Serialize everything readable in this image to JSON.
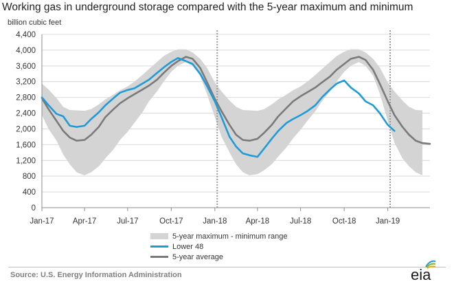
{
  "title": "Working gas in underground  storage compared with the 5-year maximum and minimum",
  "unit_label": "billion cubic feet",
  "source": "Source:  U.S. Energy Information Administration",
  "logo_text": "eia",
  "legend": [
    {
      "key": "range",
      "label": "5-year maximum - minimum range",
      "color": "#d4d4d4"
    },
    {
      "key": "lower48",
      "label": "Lower 48",
      "color": "#1f9bd7"
    },
    {
      "key": "avg",
      "label": "5-year average",
      "color": "#7a7a7a"
    }
  ],
  "chart_data": {
    "type": "area",
    "title": "Working gas in underground  storage compared with the 5-year maximum and minimum",
    "ylabel": "billion cubic feet",
    "xlabel": "",
    "ylim": [
      0,
      4400
    ],
    "yticks": [
      0,
      400,
      800,
      1200,
      1600,
      2000,
      2400,
      2800,
      3200,
      3600,
      4000,
      4400
    ],
    "ytick_labels": [
      "0",
      "400",
      "800",
      "1,200",
      "1,600",
      "2,000",
      "2,400",
      "2,800",
      "3,200",
      "3,600",
      "4,000",
      "4,400"
    ],
    "xlim": [
      "2017-01-01",
      "2019-03-31"
    ],
    "xticks": [
      "2017-01-01",
      "2017-04-01",
      "2017-07-01",
      "2017-10-01",
      "2018-01-01",
      "2018-04-01",
      "2018-07-01",
      "2018-10-01",
      "2019-01-01"
    ],
    "xtick_labels": [
      "Jan-17",
      "Apr-17",
      "Jul-17",
      "Oct-17",
      "Jan-18",
      "Apr-18",
      "Jul-18",
      "Oct-18",
      "Jan-19"
    ],
    "vlines": [
      "2018-01-06",
      "2019-01-06"
    ],
    "grid": "horizontal",
    "legend_position": "bottom-center",
    "colors": {
      "range": "#d4d4d4",
      "lower48": "#1f9bd7",
      "avg": "#7a7a7a",
      "vline": "#9a9a9a"
    },
    "range_band": {
      "name": "5-year maximum - minimum range",
      "x": [
        "2017-01-01",
        "2017-01-15",
        "2017-02-01",
        "2017-02-15",
        "2017-03-01",
        "2017-03-15",
        "2017-04-01",
        "2017-04-15",
        "2017-05-01",
        "2017-05-15",
        "2017-06-01",
        "2017-06-15",
        "2017-07-01",
        "2017-07-15",
        "2017-08-01",
        "2017-08-15",
        "2017-09-01",
        "2017-09-15",
        "2017-10-01",
        "2017-10-15",
        "2017-11-01",
        "2017-11-15",
        "2017-12-01",
        "2017-12-15",
        "2018-01-01",
        "2018-01-15",
        "2018-02-01",
        "2018-02-15",
        "2018-03-01",
        "2018-03-15",
        "2018-04-01",
        "2018-04-15",
        "2018-05-01",
        "2018-05-15",
        "2018-06-01",
        "2018-06-15",
        "2018-07-01",
        "2018-07-15",
        "2018-08-01",
        "2018-08-15",
        "2018-09-01",
        "2018-09-15",
        "2018-10-01",
        "2018-10-15",
        "2018-11-01",
        "2018-11-15",
        "2018-12-01",
        "2018-12-15",
        "2019-01-01",
        "2019-01-15",
        "2019-02-01",
        "2019-02-15",
        "2019-03-01",
        "2019-03-15"
      ],
      "max": [
        3150,
        3000,
        2780,
        2560,
        2480,
        2470,
        2460,
        2500,
        2620,
        2750,
        2870,
        2980,
        3080,
        3200,
        3370,
        3520,
        3700,
        3850,
        3960,
        4020,
        4020,
        3940,
        3780,
        3560,
        3180,
        2950,
        2720,
        2560,
        2480,
        2470,
        2460,
        2500,
        2620,
        2750,
        2870,
        2980,
        3080,
        3200,
        3370,
        3520,
        3700,
        3850,
        3960,
        4020,
        4020,
        3940,
        3780,
        3560,
        3180,
        2950,
        2720,
        2560,
        2480,
        2470
      ],
      "min": [
        2350,
        2000,
        1700,
        1350,
        1100,
        900,
        820,
        900,
        1050,
        1250,
        1480,
        1720,
        1930,
        2150,
        2420,
        2700,
        2950,
        3200,
        3450,
        3600,
        3700,
        3600,
        3350,
        2900,
        2300,
        1800,
        1400,
        1100,
        900,
        820,
        850,
        950,
        1100,
        1300,
        1530,
        1760,
        1980,
        2200,
        2450,
        2700,
        2950,
        3200,
        3450,
        3600,
        3700,
        3600,
        3350,
        2900,
        2200,
        1650,
        1250,
        1050,
        900,
        820
      ]
    },
    "series": [
      {
        "name": "Lower 48",
        "x": [
          "2017-01-01",
          "2017-01-15",
          "2017-02-01",
          "2017-02-15",
          "2017-03-01",
          "2017-03-15",
          "2017-04-01",
          "2017-04-15",
          "2017-05-01",
          "2017-05-15",
          "2017-06-01",
          "2017-06-15",
          "2017-07-01",
          "2017-07-15",
          "2017-08-01",
          "2017-08-15",
          "2017-09-01",
          "2017-09-15",
          "2017-10-01",
          "2017-10-15",
          "2017-11-01",
          "2017-11-15",
          "2017-12-01",
          "2017-12-15",
          "2018-01-01",
          "2018-01-15",
          "2018-02-01",
          "2018-02-15",
          "2018-03-01",
          "2018-03-15",
          "2018-04-01",
          "2018-04-15",
          "2018-05-01",
          "2018-05-15",
          "2018-06-01",
          "2018-06-15",
          "2018-07-01",
          "2018-07-15",
          "2018-08-01",
          "2018-08-15",
          "2018-09-01",
          "2018-09-15",
          "2018-10-01",
          "2018-10-15",
          "2018-11-01",
          "2018-11-15",
          "2018-12-01",
          "2018-12-15",
          "2019-01-01",
          "2019-01-15"
        ],
        "values": [
          2800,
          2600,
          2380,
          2320,
          2080,
          2050,
          2080,
          2250,
          2420,
          2600,
          2780,
          2920,
          2990,
          3030,
          3150,
          3250,
          3420,
          3560,
          3700,
          3800,
          3720,
          3650,
          3400,
          3100,
          2700,
          2300,
          1800,
          1550,
          1380,
          1330,
          1290,
          1500,
          1750,
          1950,
          2150,
          2250,
          2350,
          2450,
          2600,
          2800,
          3000,
          3150,
          3230,
          3050,
          2900,
          2700,
          2600,
          2400,
          2100,
          1950
        ]
      },
      {
        "name": "5-year average",
        "x": [
          "2017-01-01",
          "2017-01-15",
          "2017-02-01",
          "2017-02-15",
          "2017-03-01",
          "2017-03-15",
          "2017-04-01",
          "2017-04-15",
          "2017-05-01",
          "2017-05-15",
          "2017-06-01",
          "2017-06-15",
          "2017-07-01",
          "2017-07-15",
          "2017-08-01",
          "2017-08-15",
          "2017-09-01",
          "2017-09-15",
          "2017-10-01",
          "2017-10-15",
          "2017-11-01",
          "2017-11-15",
          "2017-12-01",
          "2017-12-15",
          "2018-01-01",
          "2018-01-15",
          "2018-02-01",
          "2018-02-15",
          "2018-03-01",
          "2018-03-15",
          "2018-04-01",
          "2018-04-15",
          "2018-05-01",
          "2018-05-15",
          "2018-06-01",
          "2018-06-15",
          "2018-07-01",
          "2018-07-15",
          "2018-08-01",
          "2018-08-15",
          "2018-09-01",
          "2018-09-15",
          "2018-10-01",
          "2018-10-15",
          "2018-11-01",
          "2018-11-15",
          "2018-12-01",
          "2018-12-15",
          "2019-01-01",
          "2019-01-15",
          "2019-02-01",
          "2019-02-15",
          "2019-03-01",
          "2019-03-15",
          "2019-03-31"
        ],
        "values": [
          2780,
          2500,
          2200,
          1950,
          1780,
          1700,
          1720,
          1850,
          2050,
          2300,
          2500,
          2650,
          2780,
          2880,
          3000,
          3100,
          3250,
          3420,
          3600,
          3720,
          3830,
          3780,
          3550,
          3200,
          2760,
          2450,
          2100,
          1850,
          1720,
          1700,
          1750,
          1900,
          2100,
          2320,
          2530,
          2700,
          2830,
          2930,
          3050,
          3180,
          3330,
          3500,
          3650,
          3780,
          3830,
          3750,
          3500,
          3150,
          2700,
          2350,
          2050,
          1850,
          1700,
          1640,
          1620
        ]
      }
    ]
  }
}
